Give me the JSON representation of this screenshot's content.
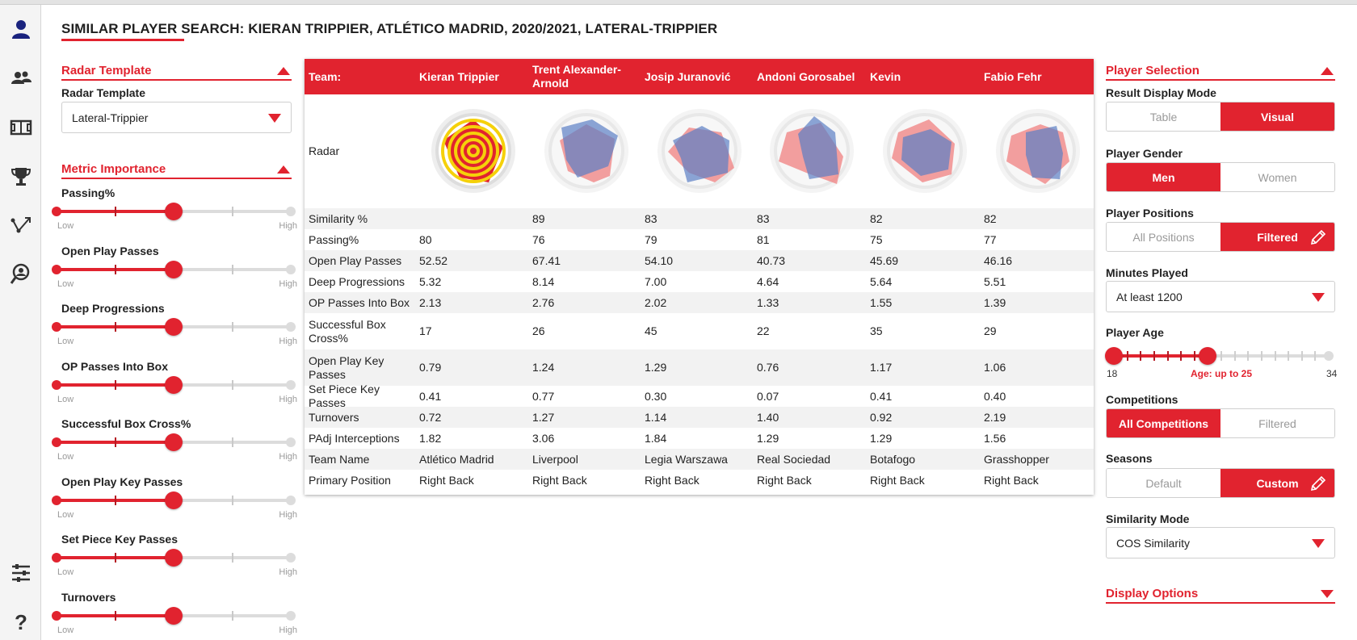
{
  "title": "SIMILAR PLAYER SEARCH: KIERAN TRIPPIER, ATLÉTICO MADRID, 2020/2021, LATERAL-TRIPPIER",
  "colors": {
    "accent": "#e1232f",
    "radar_blue": "#5b7fc4",
    "radar_red": "#f08080",
    "nav_icon": "#1a237e"
  },
  "nav": {
    "items": [
      "user-icon",
      "players-icon",
      "pitch-icon",
      "trophy-icon",
      "passing-icon",
      "scout-search-icon",
      "sliders-icon",
      "help-icon"
    ]
  },
  "left_panel": {
    "radar_section": {
      "header": "Radar Template",
      "field_label": "Radar Template",
      "selected": "Lateral-Trippier"
    },
    "metric_section": {
      "header": "Metric Importance"
    },
    "metrics": [
      {
        "label": "Passing%",
        "low": "Low",
        "high": "High",
        "importance": 0.5
      },
      {
        "label": "Open Play Passes",
        "low": "Low",
        "high": "High",
        "importance": 0.5
      },
      {
        "label": "Deep Progressions",
        "low": "Low",
        "high": "High",
        "importance": 0.5
      },
      {
        "label": "OP Passes Into Box",
        "low": "Low",
        "high": "High",
        "importance": 0.5
      },
      {
        "label": "Successful Box Cross%",
        "low": "Low",
        "high": "High",
        "importance": 0.5
      },
      {
        "label": "Open Play Key Passes",
        "low": "Low",
        "high": "High",
        "importance": 0.5
      },
      {
        "label": "Set Piece Key Passes",
        "low": "Low",
        "high": "High",
        "importance": 0.5
      },
      {
        "label": "Turnovers",
        "low": "Low",
        "high": "High",
        "importance": 0.5
      }
    ]
  },
  "table": {
    "header_label": "Team:",
    "players": [
      "Kieran Trippier",
      "Trent Alexander-Arnold",
      "Josip Juranović",
      "Andoni Gorosabel",
      "Kevin",
      "Fabio Fehr"
    ],
    "radar_label": "Radar",
    "rows": [
      {
        "label": "Similarity %",
        "values": [
          "",
          "89",
          "83",
          "83",
          "82",
          "82"
        ]
      },
      {
        "label": "Passing%",
        "values": [
          "80",
          "76",
          "79",
          "81",
          "75",
          "77"
        ]
      },
      {
        "label": "Open Play Passes",
        "values": [
          "52.52",
          "67.41",
          "54.10",
          "40.73",
          "45.69",
          "46.16"
        ]
      },
      {
        "label": "Deep Progressions",
        "values": [
          "5.32",
          "8.14",
          "7.00",
          "4.64",
          "5.64",
          "5.51"
        ]
      },
      {
        "label": "OP Passes Into Box",
        "values": [
          "2.13",
          "2.76",
          "2.02",
          "1.33",
          "1.55",
          "1.39"
        ]
      },
      {
        "label": "Successful Box Cross%",
        "values": [
          "17",
          "26",
          "45",
          "22",
          "35",
          "29"
        ]
      },
      {
        "label": "Open Play Key Passes",
        "values": [
          "0.79",
          "1.24",
          "1.29",
          "0.76",
          "1.17",
          "1.06"
        ]
      },
      {
        "label": "Set Piece Key Passes",
        "values": [
          "0.41",
          "0.77",
          "0.30",
          "0.07",
          "0.41",
          "0.40"
        ]
      },
      {
        "label": "Turnovers",
        "values": [
          "0.72",
          "1.27",
          "1.14",
          "1.40",
          "0.92",
          "2.19"
        ]
      },
      {
        "label": "PAdj Interceptions",
        "values": [
          "1.82",
          "3.06",
          "1.84",
          "1.29",
          "1.29",
          "1.56"
        ]
      },
      {
        "label": "Team Name",
        "values": [
          "Atlético Madrid",
          "Liverpool",
          "Legia Warszawa",
          "Real Sociedad",
          "Botafogo",
          "Grasshopper"
        ]
      },
      {
        "label": "Primary Position",
        "values": [
          "Right Back",
          "Right Back",
          "Right Back",
          "Right Back",
          "Right Back",
          "Right Back"
        ]
      }
    ]
  },
  "right_panel": {
    "header": "Player Selection",
    "result_display": {
      "label": "Result Display Mode",
      "options": [
        "Table",
        "Visual"
      ],
      "selected": "Visual"
    },
    "gender": {
      "label": "Player Gender",
      "options": [
        "Men",
        "Women"
      ],
      "selected": "Men"
    },
    "positions": {
      "label": "Player Positions",
      "options": [
        "All Positions",
        "Filtered"
      ],
      "selected": "Filtered"
    },
    "minutes": {
      "label": "Minutes Played",
      "selected": "At least 1200"
    },
    "age": {
      "label": "Player Age",
      "min": "18",
      "max": "34",
      "caption": "Age: up to 25",
      "range_min": 18,
      "range_max": 34,
      "selected_max": 25
    },
    "competitions": {
      "label": "Competitions",
      "options": [
        "All Competitions",
        "Filtered"
      ],
      "selected": "All Competitions"
    },
    "seasons": {
      "label": "Seasons",
      "options": [
        "Default",
        "Custom"
      ],
      "selected": "Custom"
    },
    "similarity": {
      "label": "Similarity Mode",
      "selected": "COS Similarity"
    },
    "display_options": {
      "header": "Display Options"
    }
  }
}
